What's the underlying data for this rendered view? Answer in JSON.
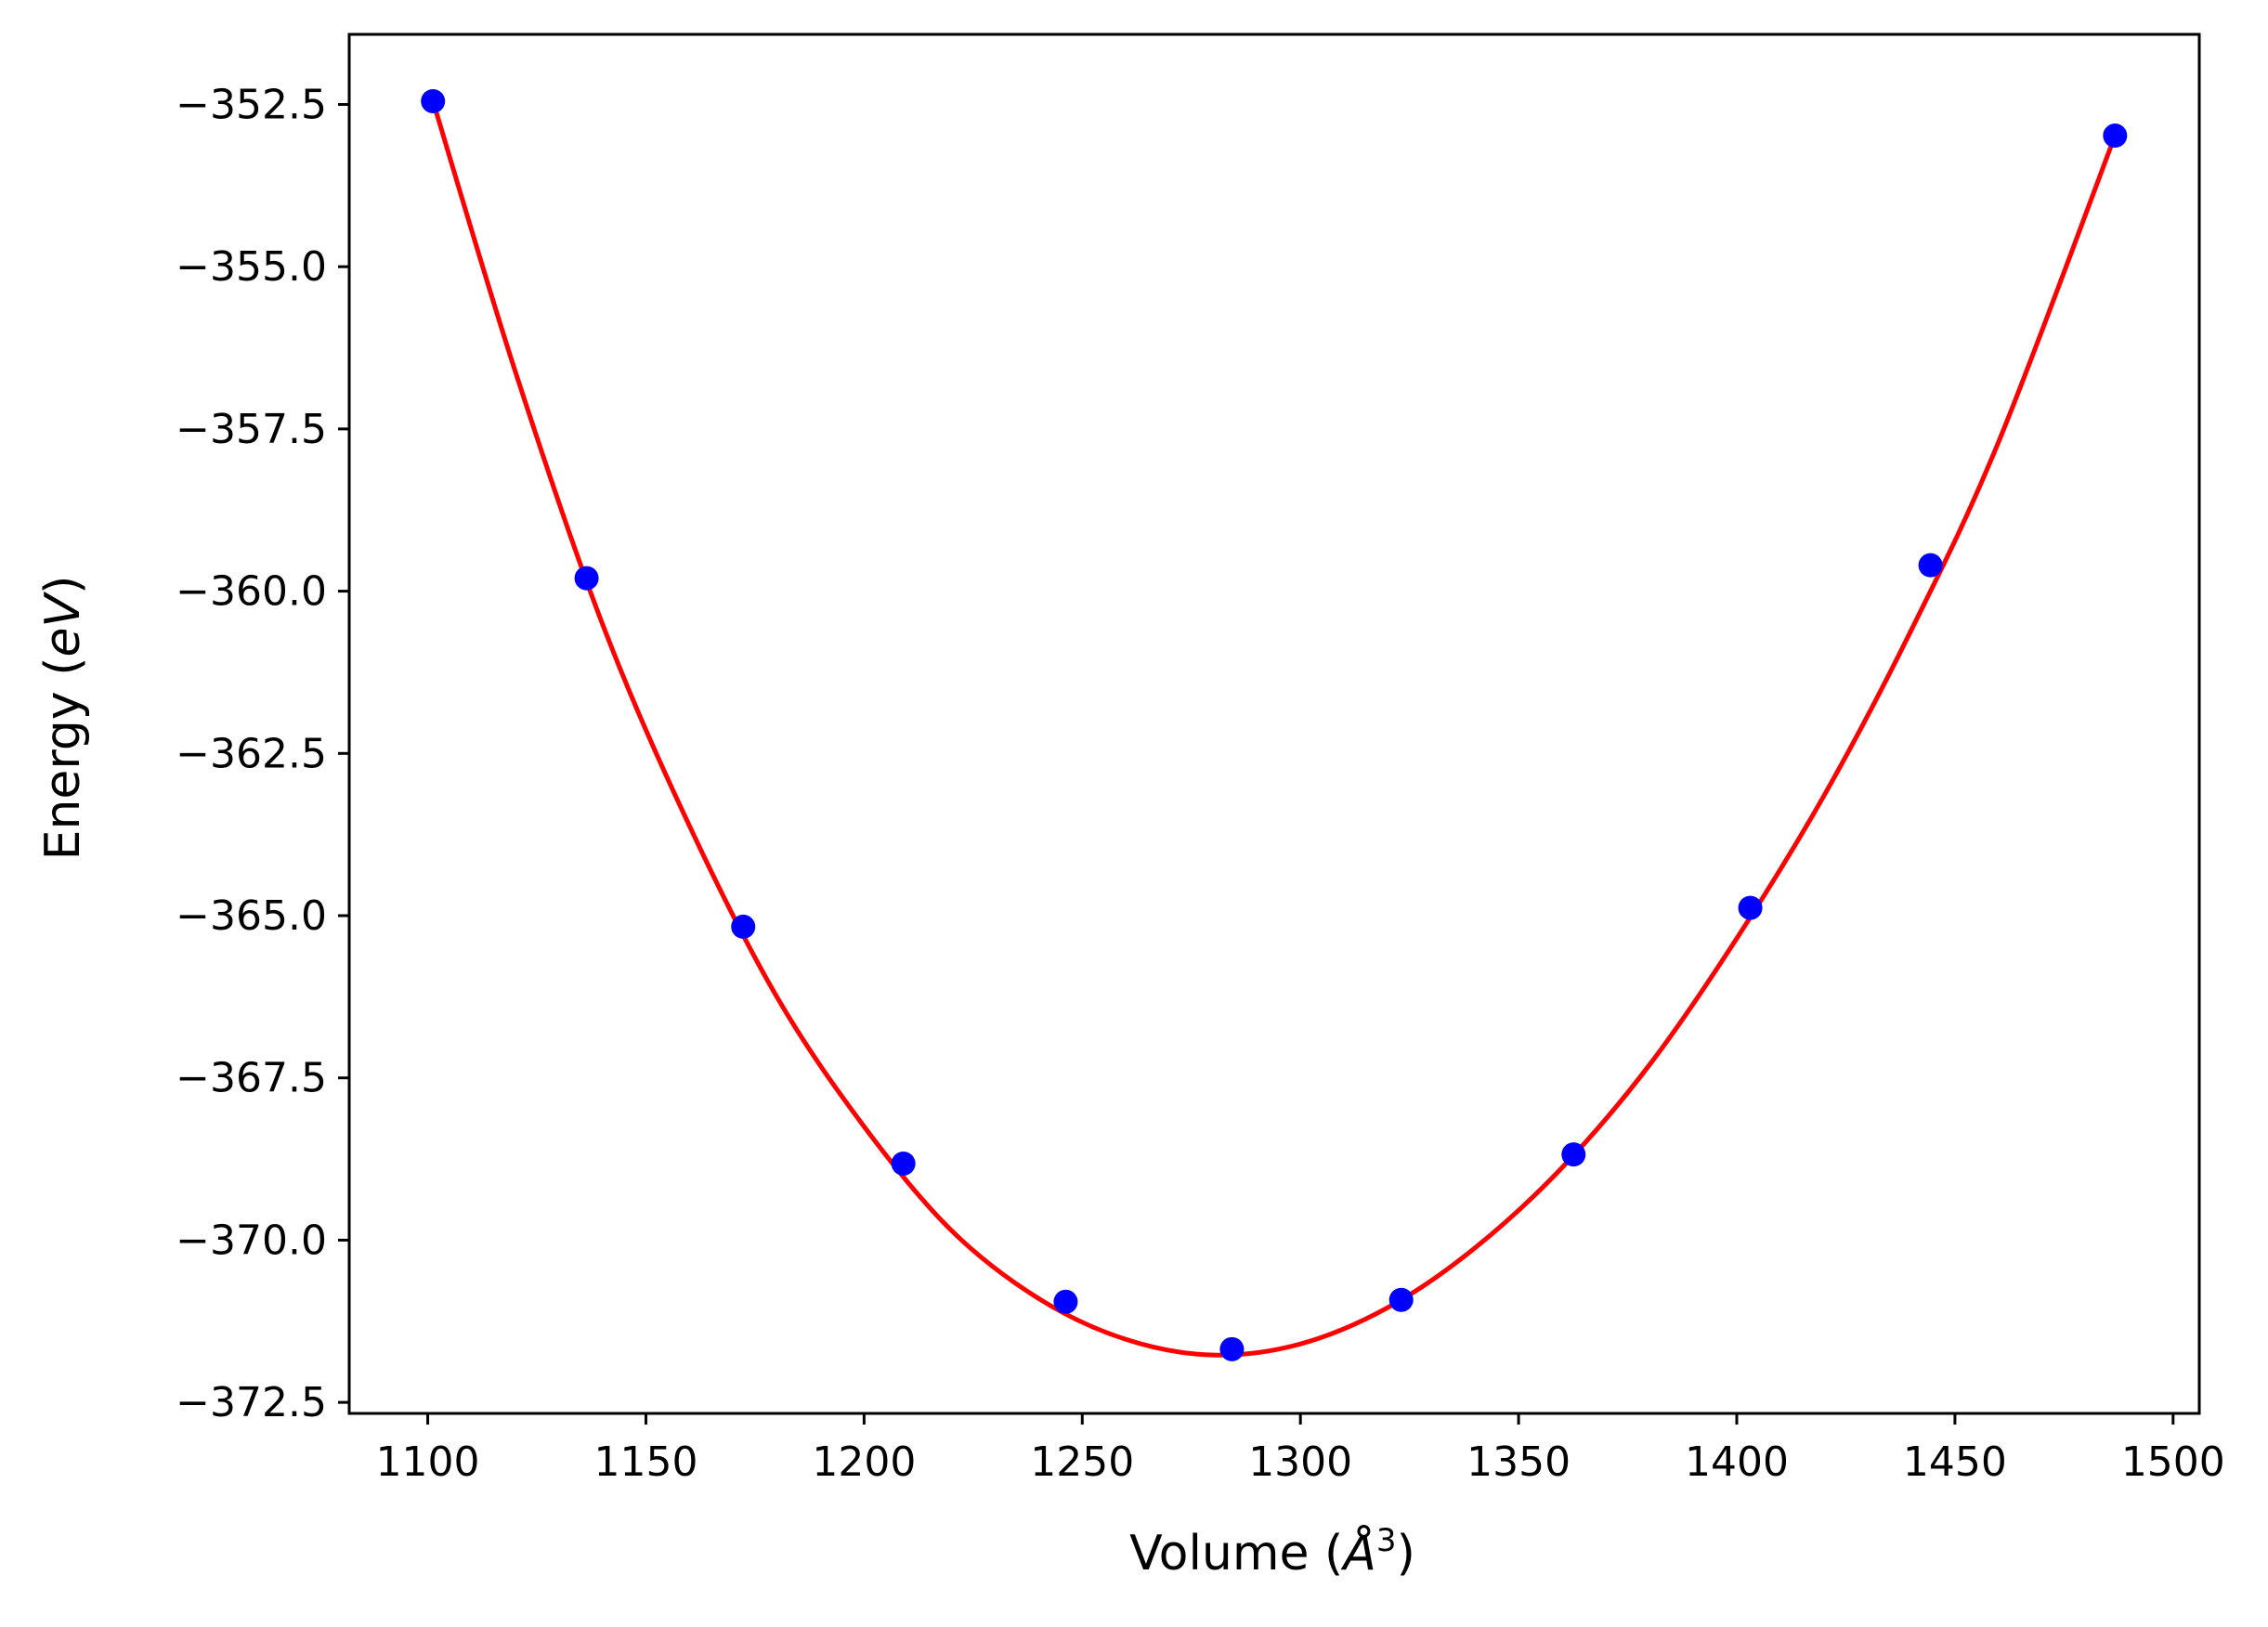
{
  "chart_data": {
    "type": "scatter",
    "xlabel": "Volume (",
    "xlabel_symbol": "Å",
    "xlabel_exponent": "3",
    "xlabel_close": ")",
    "ylabel": "Energy (",
    "ylabel_unit": "eV",
    "ylabel_close": ")",
    "xlim": [
      1082,
      1506
    ],
    "ylim": [
      -372.67,
      -351.42
    ],
    "x_ticks": [
      1100,
      1150,
      1200,
      1250,
      1300,
      1350,
      1400,
      1450,
      1500
    ],
    "x_tick_labels": [
      "1100",
      "1150",
      "1200",
      "1250",
      "1300",
      "1350",
      "1400",
      "1450",
      "1500"
    ],
    "y_ticks": [
      -352.5,
      -355.0,
      -357.5,
      -360.0,
      -362.5,
      -365.0,
      -367.5,
      -370.0,
      -372.5
    ],
    "y_tick_labels": [
      "−352.5",
      "−355.0",
      "−357.5",
      "−360.0",
      "−362.5",
      "−365.0",
      "−367.5",
      "−370.0",
      "−372.5"
    ],
    "grid": false,
    "series": [
      {
        "kind": "points",
        "color": "#0000ff",
        "x": [
          1101.2,
          1136.4,
          1172.3,
          1209.0,
          1246.2,
          1284.3,
          1323.1,
          1362.6,
          1403.1,
          1444.4,
          1486.7
        ],
        "y": [
          -352.45,
          -359.8,
          -365.17,
          -368.82,
          -370.95,
          -371.68,
          -370.92,
          -368.68,
          -364.88,
          -359.6,
          -352.98
        ]
      },
      {
        "kind": "fit-curve",
        "color": "#ff0000",
        "x": [
          1101.2,
          1120,
          1140,
          1160,
          1180,
          1200,
          1220,
          1240,
          1260,
          1280,
          1300,
          1320,
          1340,
          1360,
          1380,
          1400,
          1420,
          1440,
          1460,
          1486.7
        ],
        "y": [
          -352.45,
          -356.6,
          -360.5,
          -363.62,
          -366.25,
          -368.25,
          -369.85,
          -370.9,
          -371.53,
          -371.77,
          -371.6,
          -371.04,
          -370.12,
          -368.88,
          -367.3,
          -365.35,
          -363.15,
          -360.6,
          -357.7,
          -352.98
        ]
      }
    ]
  }
}
